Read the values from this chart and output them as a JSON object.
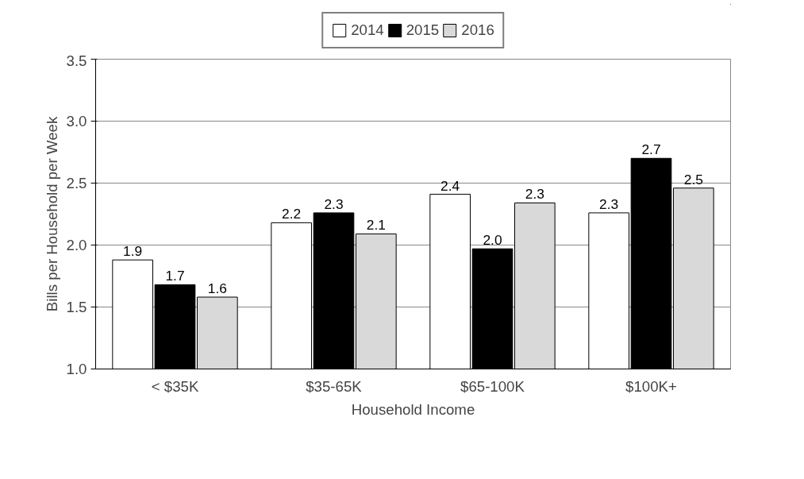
{
  "chart_data": {
    "type": "bar",
    "xlabel": "Household Income",
    "ylabel": "Bills per Household per Week",
    "categories": [
      "< $35K",
      "$35-65K",
      "$65-100K",
      "$100K+"
    ],
    "series": [
      {
        "name": "2014",
        "color": "#ffffff",
        "values": [
          1.88,
          2.18,
          2.41,
          2.26
        ],
        "value_labels": [
          "1.9",
          "2.2",
          "2.4",
          "2.3"
        ]
      },
      {
        "name": "2015",
        "color": "#000000",
        "values": [
          1.68,
          2.26,
          1.97,
          2.7
        ],
        "value_labels": [
          "1.7",
          "2.3",
          "2.0",
          "2.7"
        ]
      },
      {
        "name": "2016",
        "color": "#d9d9d9",
        "values": [
          1.58,
          2.09,
          2.34,
          2.46
        ],
        "value_labels": [
          "1.6",
          "2.1",
          "2.3",
          "2.5"
        ]
      }
    ],
    "ylim": [
      1.0,
      3.5
    ],
    "yticks": [
      {
        "value": 1.0,
        "label": "1.0"
      },
      {
        "value": 1.5,
        "label": "1.5"
      },
      {
        "value": 2.0,
        "label": "2.0"
      },
      {
        "value": 2.5,
        "label": "2.5"
      },
      {
        "value": 3.0,
        "label": "3.0"
      },
      {
        "value": 3.5,
        "label": "3.5"
      }
    ],
    "grid": "y",
    "legend": "top"
  }
}
